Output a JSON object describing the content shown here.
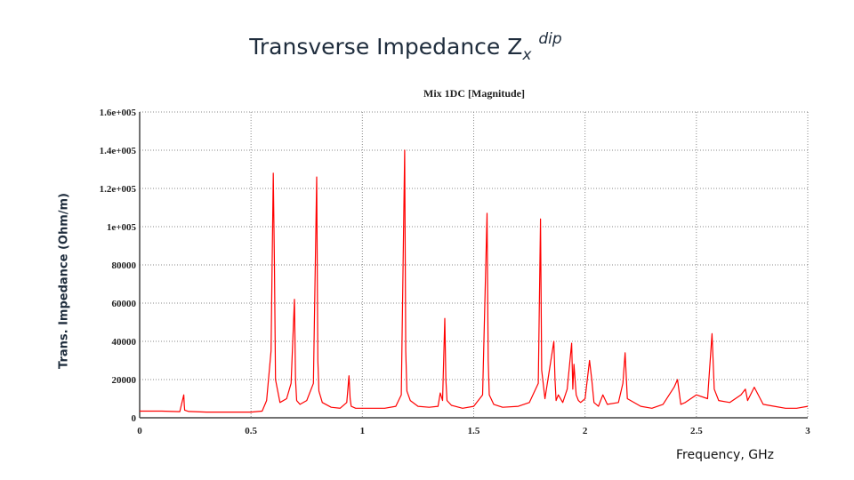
{
  "slide": {
    "title_main": "Transverse Impedance Z",
    "title_sub": "x",
    "title_sup": "dip",
    "ylabel": "Trans. Impedance (Ohm/m)",
    "xlabel": "Frequency, GHz"
  },
  "colors": {
    "trace": "#ff0000",
    "grid": "#8a8a8a",
    "frame": "#444444"
  },
  "chart_data": {
    "type": "line",
    "title": "Mix 1DC [Magnitude]",
    "xlim": [
      0,
      3
    ],
    "ylim": [
      0,
      160000
    ],
    "x_ticks": [
      "0",
      "0.5",
      "1",
      "1.5",
      "2",
      "2.5",
      "3"
    ],
    "x_tick_values": [
      0,
      0.5,
      1,
      1.5,
      2,
      2.5,
      3
    ],
    "y_ticks": [
      "0",
      "20000",
      "40000",
      "60000",
      "80000",
      "1e+005",
      "1.2e+005",
      "1.4e+005",
      "1.6e+005"
    ],
    "y_tick_values": [
      0,
      20000,
      40000,
      60000,
      80000,
      100000,
      120000,
      140000,
      160000
    ],
    "grid": "dotted",
    "series": [
      {
        "x": [
          0,
          0.1,
          0.18,
          0.198,
          0.2,
          0.202,
          0.22,
          0.3,
          0.4,
          0.5,
          0.55,
          0.57,
          0.59,
          0.6,
          0.605,
          0.61,
          0.63,
          0.66,
          0.68,
          0.695,
          0.7,
          0.705,
          0.72,
          0.75,
          0.78,
          0.795,
          0.8,
          0.805,
          0.82,
          0.86,
          0.9,
          0.93,
          0.94,
          0.945,
          0.95,
          0.97,
          1.05,
          1.1,
          1.15,
          1.175,
          1.19,
          1.195,
          1.2,
          1.215,
          1.25,
          1.3,
          1.34,
          1.35,
          1.36,
          1.37,
          1.375,
          1.38,
          1.4,
          1.45,
          1.5,
          1.54,
          1.56,
          1.565,
          1.57,
          1.59,
          1.63,
          1.7,
          1.75,
          1.79,
          1.8,
          1.805,
          1.82,
          1.86,
          1.865,
          1.87,
          1.88,
          1.9,
          1.92,
          1.94,
          1.945,
          1.95,
          1.96,
          1.97,
          1.98,
          2.0,
          2.02,
          2.03,
          2.04,
          2.06,
          2.08,
          2.1,
          2.15,
          2.17,
          2.18,
          2.19,
          2.25,
          2.3,
          2.35,
          2.4,
          2.415,
          2.43,
          2.45,
          2.5,
          2.55,
          2.57,
          2.58,
          2.6,
          2.65,
          2.7,
          2.72,
          2.73,
          2.76,
          2.8,
          2.85,
          2.9,
          2.95,
          3.0
        ],
        "y": [
          3500,
          3500,
          3200,
          12000,
          7000,
          4000,
          3300,
          3000,
          3000,
          3000,
          3500,
          9000,
          35000,
          128000,
          80000,
          20000,
          8000,
          10000,
          18000,
          62000,
          20000,
          9000,
          7000,
          9000,
          18000,
          126000,
          30000,
          14000,
          8000,
          5500,
          5000,
          8000,
          22000,
          10000,
          6000,
          5000,
          5000,
          5000,
          6000,
          12000,
          140000,
          35000,
          14000,
          9000,
          6000,
          5500,
          6000,
          13000,
          9000,
          52000,
          20000,
          9000,
          6500,
          5000,
          6000,
          12000,
          107000,
          30000,
          12000,
          7000,
          5500,
          6000,
          8000,
          18000,
          104000,
          25000,
          10000,
          40000,
          20000,
          9000,
          12000,
          8000,
          15000,
          39000,
          15000,
          28000,
          12000,
          9000,
          8000,
          10000,
          30000,
          20000,
          8000,
          6000,
          12000,
          7000,
          8000,
          18000,
          34000,
          10000,
          6000,
          5000,
          7000,
          16000,
          20000,
          7000,
          8000,
          12000,
          10000,
          44000,
          15000,
          9000,
          8000,
          12000,
          15000,
          9000,
          16000,
          7000,
          6000,
          5000,
          5000,
          6000
        ]
      }
    ]
  }
}
